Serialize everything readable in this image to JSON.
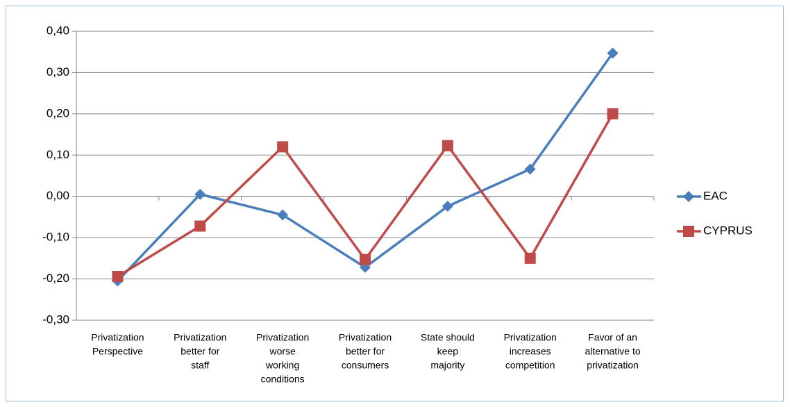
{
  "chart_data": {
    "type": "line",
    "categories": [
      [
        "Privatization",
        "Perspective"
      ],
      [
        "Privatization",
        "better for",
        "staff"
      ],
      [
        "Privatization",
        "worse",
        "working",
        "conditions"
      ],
      [
        "Privatization",
        "better for",
        "consumers"
      ],
      [
        "State should",
        "keep",
        "majority"
      ],
      [
        "Privatization",
        "increases",
        "competition"
      ],
      [
        "Favor of an",
        "alternative to",
        "privatization"
      ]
    ],
    "series": [
      {
        "name": "EAC",
        "color": "#4a7ebb",
        "marker": "diamond",
        "values": [
          -0.205,
          0.005,
          -0.045,
          -0.172,
          -0.024,
          0.066,
          0.347
        ]
      },
      {
        "name": "CYPRUS",
        "color": "#be4b48",
        "marker": "square",
        "values": [
          -0.194,
          -0.072,
          0.12,
          -0.153,
          0.123,
          -0.15,
          0.2
        ]
      }
    ],
    "ylim": [
      -0.3,
      0.4
    ],
    "yticks": [
      {
        "value": -0.3,
        "label": "-0,30"
      },
      {
        "value": -0.2,
        "label": "-0,20"
      },
      {
        "value": -0.1,
        "label": "-0,10"
      },
      {
        "value": 0,
        "label": "0,00"
      },
      {
        "value": 0.1,
        "label": "0,10"
      },
      {
        "value": 0.2,
        "label": "0,20"
      },
      {
        "value": 0.3,
        "label": "0,30"
      },
      {
        "value": 0.4,
        "label": "0,40"
      }
    ],
    "grid": true,
    "legend": "right"
  }
}
